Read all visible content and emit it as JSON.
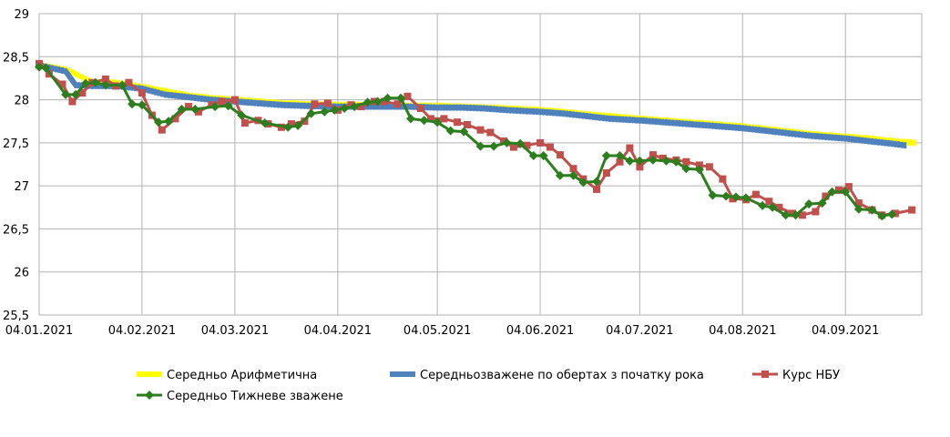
{
  "chart_data": {
    "type": "line",
    "title": "",
    "xlabel": "",
    "ylabel": "",
    "ylim": [
      25.5,
      29
    ],
    "yticks": [
      "25,5",
      "26",
      "26,5",
      "27",
      "27,5",
      "28",
      "28,5",
      "29"
    ],
    "ytick_values": [
      25.5,
      26,
      26.5,
      27,
      27.5,
      28,
      28.5,
      29
    ],
    "xlim": [
      "2021-01-04",
      "2021-09-27"
    ],
    "xticks": [
      "04.01.2021",
      "04.02.2021",
      "04.03.2021",
      "04.04.2021",
      "04.05.2021",
      "04.06.2021",
      "04.07.2021",
      "04.08.2021",
      "04.09.2021"
    ],
    "xtick_dates": [
      "2021-01-04",
      "2021-02-04",
      "2021-03-04",
      "2021-04-04",
      "2021-05-04",
      "2021-06-04",
      "2021-07-04",
      "2021-08-04",
      "2021-09-04"
    ],
    "grid": true,
    "legend_position": "bottom",
    "series": [
      {
        "name": "Середньо Арифметична",
        "color": "#ffff00",
        "marker": "none",
        "x": [
          "2021-01-04",
          "2021-01-12",
          "2021-01-15",
          "2021-01-20",
          "2021-01-27",
          "2021-02-04",
          "2021-02-11",
          "2021-02-18",
          "2021-02-25",
          "2021-03-04",
          "2021-03-11",
          "2021-03-18",
          "2021-03-25",
          "2021-04-04",
          "2021-04-11",
          "2021-04-18",
          "2021-04-25",
          "2021-05-04",
          "2021-05-11",
          "2021-05-18",
          "2021-05-25",
          "2021-06-04",
          "2021-06-11",
          "2021-06-18",
          "2021-06-25",
          "2021-07-04",
          "2021-07-11",
          "2021-07-18",
          "2021-07-25",
          "2021-08-04",
          "2021-08-11",
          "2021-08-18",
          "2021-08-25",
          "2021-09-04",
          "2021-09-11",
          "2021-09-18",
          "2021-09-25"
        ],
        "values": [
          28.4,
          28.35,
          28.3,
          28.2,
          28.2,
          28.15,
          28.1,
          28.05,
          28.02,
          28.0,
          27.98,
          27.96,
          27.95,
          27.94,
          27.94,
          27.93,
          27.93,
          27.93,
          27.92,
          27.91,
          27.9,
          27.88,
          27.86,
          27.83,
          27.81,
          27.78,
          27.76,
          27.74,
          27.72,
          27.69,
          27.66,
          27.63,
          27.6,
          27.57,
          27.55,
          27.52,
          27.5
        ]
      },
      {
        "name": "Середньозважене по обертах з початку рока",
        "color": "#4f81bd",
        "marker": "none",
        "x": [
          "2021-01-04",
          "2021-01-12",
          "2021-01-15",
          "2021-01-20",
          "2021-01-27",
          "2021-02-04",
          "2021-02-11",
          "2021-02-18",
          "2021-02-25",
          "2021-03-04",
          "2021-03-11",
          "2021-03-18",
          "2021-03-25",
          "2021-04-04",
          "2021-04-11",
          "2021-04-18",
          "2021-04-25",
          "2021-05-04",
          "2021-05-11",
          "2021-05-18",
          "2021-05-25",
          "2021-06-04",
          "2021-06-11",
          "2021-06-18",
          "2021-06-25",
          "2021-07-04",
          "2021-07-11",
          "2021-07-18",
          "2021-07-25",
          "2021-08-04",
          "2021-08-11",
          "2021-08-18",
          "2021-08-25",
          "2021-09-04",
          "2021-09-11",
          "2021-09-18",
          "2021-09-22"
        ],
        "values": [
          28.4,
          28.33,
          28.17,
          28.16,
          28.16,
          28.13,
          28.06,
          28.03,
          28.0,
          27.98,
          27.96,
          27.94,
          27.93,
          27.92,
          27.92,
          27.92,
          27.92,
          27.91,
          27.91,
          27.9,
          27.88,
          27.86,
          27.84,
          27.81,
          27.78,
          27.76,
          27.74,
          27.72,
          27.7,
          27.67,
          27.64,
          27.61,
          27.58,
          27.55,
          27.52,
          27.49,
          27.47
        ]
      },
      {
        "name": "Курс НБУ",
        "color": "#c0504d",
        "marker": "square",
        "x": [
          "2021-01-04",
          "2021-01-07",
          "2021-01-11",
          "2021-01-14",
          "2021-01-17",
          "2021-01-20",
          "2021-01-24",
          "2021-01-27",
          "2021-01-31",
          "2021-02-04",
          "2021-02-07",
          "2021-02-10",
          "2021-02-14",
          "2021-02-18",
          "2021-02-21",
          "2021-02-25",
          "2021-02-28",
          "2021-03-04",
          "2021-03-07",
          "2021-03-11",
          "2021-03-14",
          "2021-03-18",
          "2021-03-21",
          "2021-03-25",
          "2021-03-28",
          "2021-04-01",
          "2021-04-04",
          "2021-04-08",
          "2021-04-11",
          "2021-04-15",
          "2021-04-18",
          "2021-04-22",
          "2021-04-25",
          "2021-04-29",
          "2021-05-02",
          "2021-05-06",
          "2021-05-10",
          "2021-05-13",
          "2021-05-17",
          "2021-05-20",
          "2021-05-24",
          "2021-05-27",
          "2021-05-31",
          "2021-06-04",
          "2021-06-07",
          "2021-06-10",
          "2021-06-14",
          "2021-06-17",
          "2021-06-21",
          "2021-06-24",
          "2021-06-28",
          "2021-07-01",
          "2021-07-04",
          "2021-07-08",
          "2021-07-11",
          "2021-07-15",
          "2021-07-18",
          "2021-07-22",
          "2021-07-25",
          "2021-07-29",
          "2021-08-01",
          "2021-08-05",
          "2021-08-08",
          "2021-08-12",
          "2021-08-15",
          "2021-08-19",
          "2021-08-22",
          "2021-08-26",
          "2021-08-29",
          "2021-09-02",
          "2021-09-05",
          "2021-09-08",
          "2021-09-12",
          "2021-09-15",
          "2021-09-19",
          "2021-09-24"
        ],
        "values": [
          28.42,
          28.3,
          28.18,
          27.98,
          28.08,
          28.2,
          28.24,
          28.16,
          28.2,
          28.08,
          27.82,
          27.65,
          27.78,
          27.92,
          27.86,
          27.94,
          27.98,
          28.0,
          27.73,
          27.76,
          27.72,
          27.68,
          27.72,
          27.75,
          27.95,
          27.96,
          27.88,
          27.94,
          27.92,
          27.98,
          27.98,
          27.95,
          28.04,
          27.9,
          27.78,
          27.78,
          27.74,
          27.71,
          27.65,
          27.62,
          27.52,
          27.45,
          27.47,
          27.5,
          27.45,
          27.36,
          27.2,
          27.08,
          26.96,
          27.15,
          27.28,
          27.44,
          27.22,
          27.36,
          27.32,
          27.3,
          27.28,
          27.24,
          27.22,
          27.08,
          26.85,
          26.84,
          26.9,
          26.82,
          26.75,
          26.68,
          26.66,
          26.7,
          26.88,
          26.95,
          26.99,
          26.8,
          26.72,
          26.66,
          26.68,
          26.72
        ]
      },
      {
        "name": "Середньо Тижневе зважене",
        "color": "#2e7d1f",
        "marker": "diamond",
        "x": [
          "2021-01-04",
          "2021-01-06",
          "2021-01-12",
          "2021-01-15",
          "2021-01-18",
          "2021-01-21",
          "2021-01-24",
          "2021-01-29",
          "2021-02-01",
          "2021-02-04",
          "2021-02-09",
          "2021-02-12",
          "2021-02-16",
          "2021-02-20",
          "2021-02-26",
          "2021-03-02",
          "2021-03-06",
          "2021-03-13",
          "2021-03-20",
          "2021-03-23",
          "2021-03-27",
          "2021-03-31",
          "2021-04-03",
          "2021-04-06",
          "2021-04-09",
          "2021-04-13",
          "2021-04-16",
          "2021-04-19",
          "2021-04-23",
          "2021-04-26",
          "2021-04-30",
          "2021-05-04",
          "2021-05-08",
          "2021-05-12",
          "2021-05-17",
          "2021-05-21",
          "2021-05-25",
          "2021-05-29",
          "2021-06-02",
          "2021-06-05",
          "2021-06-10",
          "2021-06-14",
          "2021-06-17",
          "2021-06-21",
          "2021-06-24",
          "2021-06-28",
          "2021-07-01",
          "2021-07-04",
          "2021-07-08",
          "2021-07-12",
          "2021-07-15",
          "2021-07-18",
          "2021-07-22",
          "2021-07-26",
          "2021-07-30",
          "2021-08-02",
          "2021-08-05",
          "2021-08-10",
          "2021-08-13",
          "2021-08-17",
          "2021-08-20",
          "2021-08-24",
          "2021-08-28",
          "2021-08-31",
          "2021-09-04",
          "2021-09-08",
          "2021-09-12",
          "2021-09-15",
          "2021-09-18"
        ],
        "values": [
          28.38,
          28.37,
          28.06,
          28.06,
          28.19,
          28.2,
          28.17,
          28.17,
          27.95,
          27.94,
          27.74,
          27.75,
          27.89,
          27.89,
          27.92,
          27.93,
          27.82,
          27.73,
          27.68,
          27.7,
          27.84,
          27.86,
          27.88,
          27.9,
          27.92,
          27.97,
          27.98,
          28.02,
          28.02,
          27.78,
          27.76,
          27.74,
          27.64,
          27.63,
          27.46,
          27.46,
          27.5,
          27.49,
          27.35,
          27.35,
          27.12,
          27.12,
          27.04,
          27.05,
          27.35,
          27.35,
          27.29,
          27.29,
          27.3,
          27.29,
          27.28,
          27.2,
          27.19,
          26.89,
          26.88,
          26.87,
          26.86,
          26.77,
          26.75,
          26.66,
          26.66,
          26.79,
          26.8,
          26.93,
          26.93,
          26.73,
          26.72,
          26.65,
          26.67
        ]
      }
    ]
  }
}
